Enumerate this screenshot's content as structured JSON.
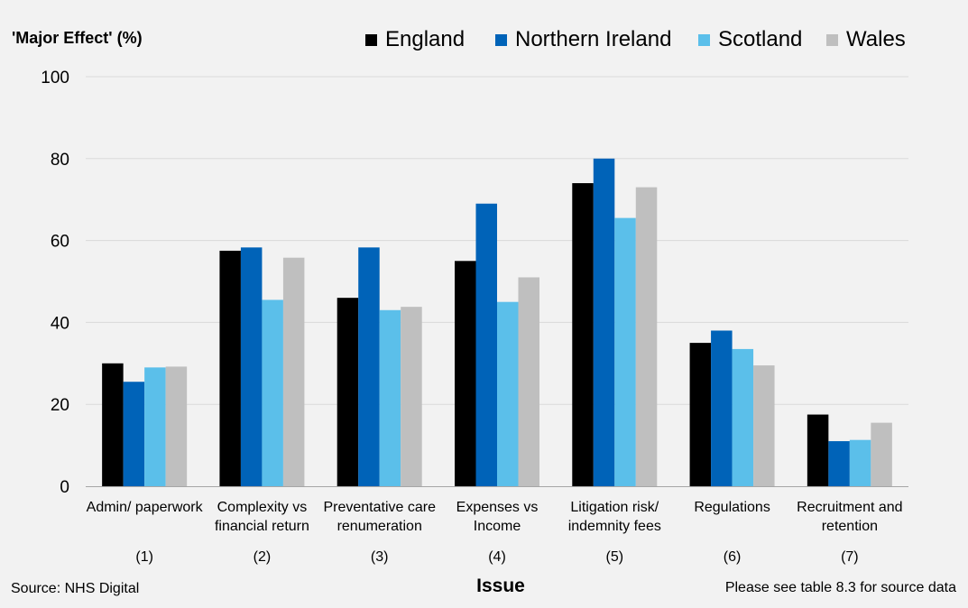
{
  "chart_data": {
    "type": "bar",
    "title": "",
    "ylabel": "'Major Effect' (%)",
    "xlabel": "Issue",
    "ylim": [
      0,
      100
    ],
    "yticks": [
      0,
      20,
      40,
      60,
      80,
      100
    ],
    "grid": true,
    "legend_position": "top-right",
    "categories": [
      {
        "lines": [
          "Admin/ paperwork"
        ],
        "number": "(1)"
      },
      {
        "lines": [
          "Complexity vs",
          "financial return"
        ],
        "number": "(2)"
      },
      {
        "lines": [
          "Preventative care",
          "renumeration"
        ],
        "number": "(3)"
      },
      {
        "lines": [
          "Expenses vs",
          "Income"
        ],
        "number": "(4)"
      },
      {
        "lines": [
          "Litigation risk/",
          "indemnity fees"
        ],
        "number": "(5)"
      },
      {
        "lines": [
          "Regulations"
        ],
        "number": "(6)"
      },
      {
        "lines": [
          "Recruitment and",
          "retention"
        ],
        "number": "(7)"
      }
    ],
    "series": [
      {
        "name": "England",
        "color": "#000000",
        "values": [
          30,
          57.5,
          46,
          55,
          74,
          35,
          17.5
        ]
      },
      {
        "name": "Northern Ireland",
        "color": "#0063b8",
        "values": [
          25.5,
          58.3,
          58.3,
          69,
          80,
          38,
          11
        ]
      },
      {
        "name": "Scotland",
        "color": "#5bbfea",
        "values": [
          29,
          45.5,
          43,
          45,
          65.5,
          33.5,
          11.3
        ]
      },
      {
        "name": "Wales",
        "color": "#bfbfbf",
        "values": [
          29.2,
          55.8,
          43.8,
          51,
          73,
          29.5,
          15.5
        ]
      }
    ]
  },
  "footer": {
    "source": "Source: NHS Digital",
    "note": "Please see table 8.3 for source data"
  }
}
